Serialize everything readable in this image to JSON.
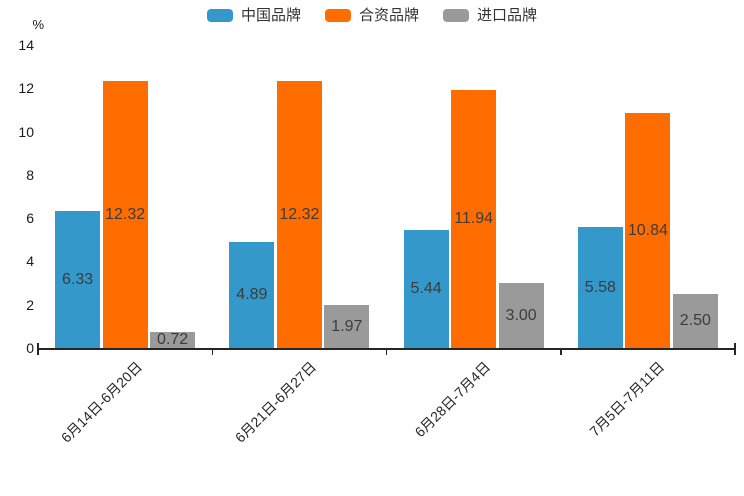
{
  "chart_data": {
    "type": "bar",
    "title": "",
    "xlabel": "",
    "ylabel": "%",
    "ylim": [
      0,
      14
    ],
    "yticks": [
      0,
      2,
      4,
      6,
      8,
      10,
      12,
      14
    ],
    "grid": false,
    "legend_position": "top",
    "value_labels": "inside-middle",
    "categories": [
      "6月14日-6月20日",
      "6月21日-6月27日",
      "6月28日-7月4日",
      "7月5日-7月11日"
    ],
    "series": [
      {
        "name": "中国品牌",
        "color": "#3498CB",
        "values": [
          6.33,
          4.89,
          5.44,
          5.58
        ]
      },
      {
        "name": "合资品牌",
        "color": "#FF6D00",
        "values": [
          12.32,
          12.32,
          11.94,
          10.84
        ]
      },
      {
        "name": "进口品牌",
        "color": "#9A9A9A",
        "values": [
          0.72,
          1.97,
          3.0,
          2.5
        ]
      }
    ]
  },
  "colors": {
    "axis": "#262626",
    "value_label": "#3C3C3C",
    "background": "#FFFFFF"
  }
}
